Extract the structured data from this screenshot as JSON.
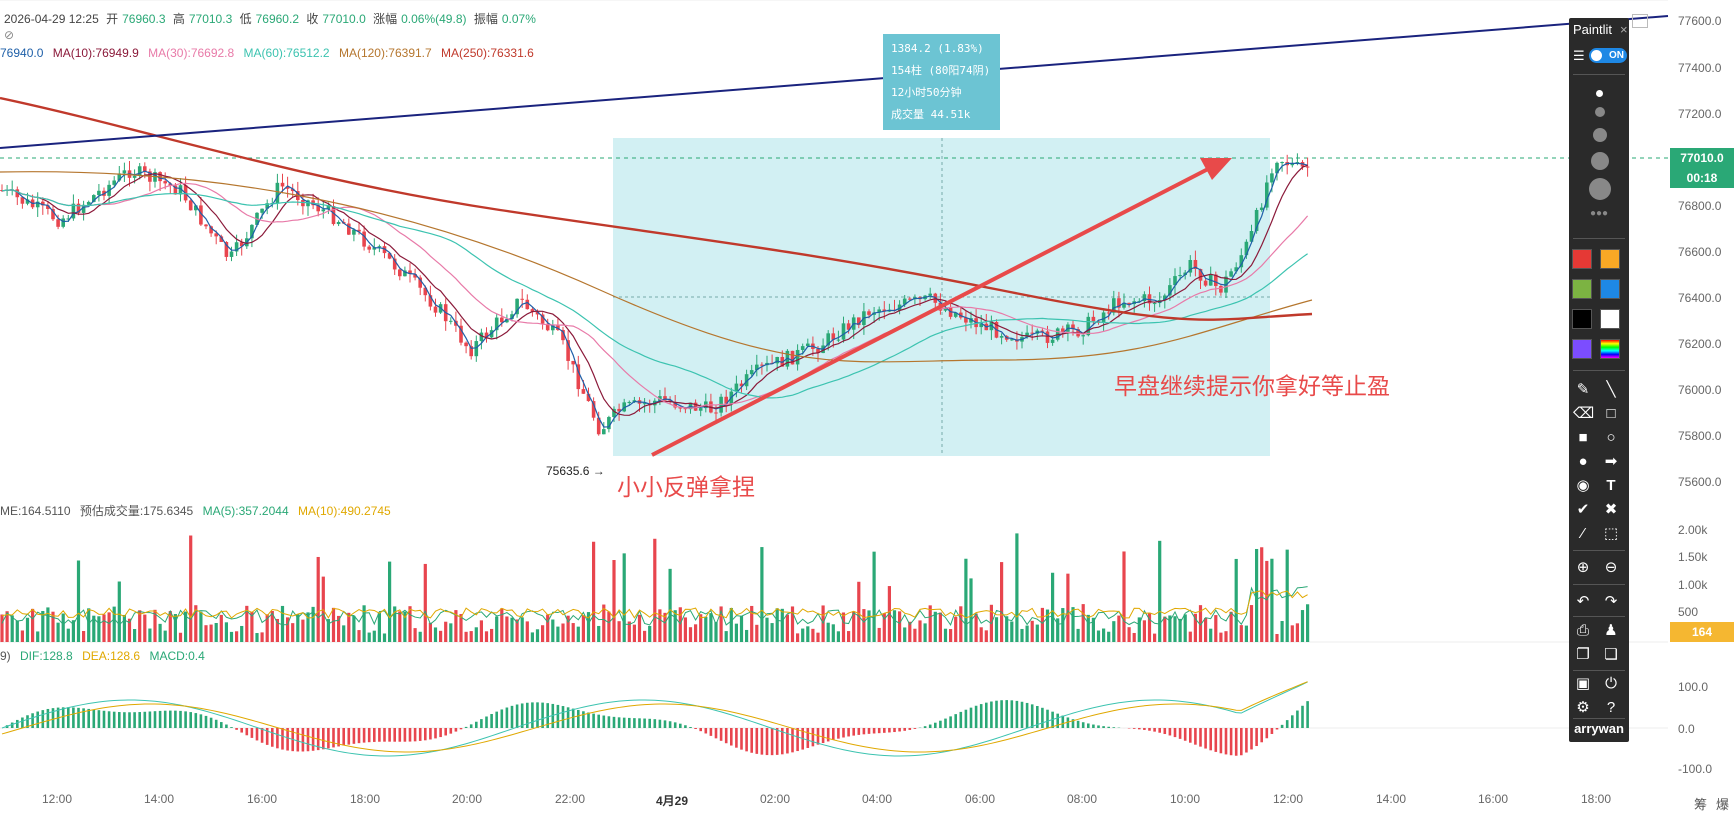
{
  "header": {
    "datetime": "2026-04-29 12:25",
    "open_label": "开",
    "open": "76960.3",
    "high_label": "高",
    "high": "77010.3",
    "low_label": "低",
    "low": "76960.2",
    "close_label": "收",
    "close": "77010.0",
    "change_label": "涨幅",
    "change": "0.06%(49.8)",
    "amplitude_label": "振幅",
    "amplitude": "0.07%"
  },
  "ma_legend": [
    {
      "text": "76940.0",
      "color": "#1e5fa8"
    },
    {
      "text": "MA(10):76949.9",
      "color": "#8b1a3a"
    },
    {
      "text": "MA(30):76692.8",
      "color": "#e87aa8"
    },
    {
      "text": "MA(60):76512.2",
      "color": "#3cc3b0"
    },
    {
      "text": "MA(120):76391.7",
      "color": "#b5762e"
    },
    {
      "text": "MA(250):76331.6",
      "color": "#c0392b"
    }
  ],
  "volume_legend": [
    {
      "text": "ME:164.5110",
      "color": "#555555"
    },
    {
      "text": "预估成交量:175.6345",
      "color": "#555555"
    },
    {
      "text": "MA(5):357.2044",
      "color": "#2aa876"
    },
    {
      "text": "MA(10):490.2745",
      "color": "#e0a800"
    }
  ],
  "macd_legend": [
    {
      "text": "9)",
      "color": "#555555"
    },
    {
      "text": "DIF:128.8",
      "color": "#2aa876"
    },
    {
      "text": "DEA:128.6",
      "color": "#e0a800"
    },
    {
      "text": "MACD:0.4",
      "color": "#2aa876"
    }
  ],
  "measure_tooltip": {
    "line1": "1384.2 (1.83%)",
    "line2": "154柱 (80阳74阴)",
    "line3": "12小时50分钟",
    "line4": "成交量 44.51k"
  },
  "low_marker": "75635.6",
  "annotations": {
    "right": "早盘继续提示你拿好等止盈",
    "bottom": "小小反弹拿捏"
  },
  "price_axis": {
    "ticks": [
      "77600.0",
      "77400.0",
      "77200.0",
      "76800.0",
      "76600.0",
      "76400.0",
      "76200.0",
      "76000.0",
      "75800.0",
      "75600.0"
    ],
    "current_price": "77010.0",
    "countdown": "00:18",
    "vol_ticks": [
      "2.00k",
      "1.50k",
      "1.00k",
      "500"
    ],
    "vol_current": "164",
    "macd_ticks": [
      "100.0",
      "0.0",
      "-100.0"
    ]
  },
  "time_axis": [
    "12:00",
    "14:00",
    "16:00",
    "18:00",
    "20:00",
    "22:00",
    "4月29",
    "02:00",
    "04:00",
    "06:00",
    "08:00",
    "10:00",
    "12:00",
    "14:00",
    "16:00",
    "18:00"
  ],
  "corner_labels": [
    "筹",
    "爆"
  ],
  "paintlit": {
    "title": "Paintlit",
    "close": "×",
    "toggle": "ON",
    "user": "arrywan",
    "colors": [
      "#e53935",
      "#f9a825",
      "#7cb342",
      "#1e88e5",
      "#000000",
      "#ffffff",
      "#7c4dff",
      "rainbow"
    ]
  },
  "colors": {
    "up": "#2aa876",
    "down": "#e8454e",
    "measure_box": "#cdeef2",
    "arrow": "#e84a4a",
    "trendline": "#1a237e"
  }
}
